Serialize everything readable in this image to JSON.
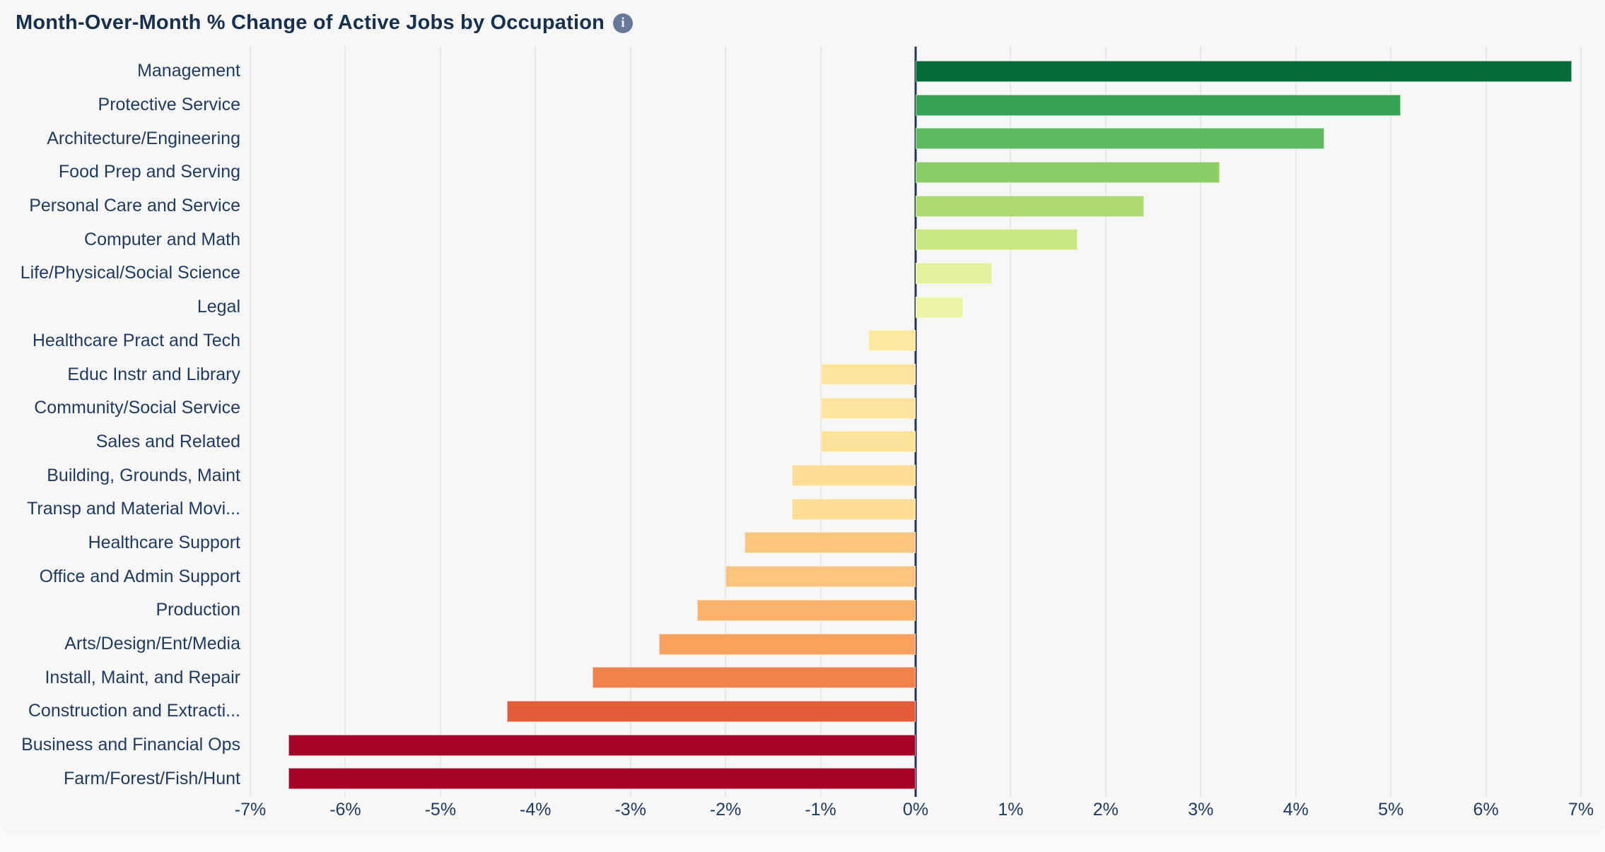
{
  "header": {
    "title": "Month-Over-Month % Change of Active Jobs by Occupation",
    "info_glyph": "i"
  },
  "colors": {
    "page_background": "#fbfbfc",
    "card_background": "#f7f7f8",
    "title_text": "#16304e",
    "axis_text": "#1e3a5f",
    "gridline": "#e8e8ea",
    "zero_line": "#1d3557",
    "info_icon_background": "#66799b"
  },
  "chart_data": {
    "type": "bar",
    "orientation": "horizontal",
    "title": "Month-Over-Month % Change of Active Jobs by Occupation",
    "xlabel": "",
    "ylabel": "",
    "x_unit": "%",
    "xlim": [
      -7,
      7
    ],
    "x_ticks": [
      "-7%",
      "-6%",
      "-5%",
      "-4%",
      "-3%",
      "-2%",
      "-1%",
      "0%",
      "1%",
      "2%",
      "3%",
      "4%",
      "5%",
      "6%",
      "7%"
    ],
    "grid": true,
    "zero_line": true,
    "legend": "none",
    "categories": [
      "Management",
      "Protective Service",
      "Architecture/Engineering",
      "Food Prep and Serving",
      "Personal Care and Service",
      "Computer and Math",
      "Life/Physical/Social Science",
      "Legal",
      "Healthcare Pract and Tech",
      "Educ Instr and Library",
      "Community/Social Service",
      "Sales and Related",
      "Building, Grounds, Maint",
      "Transp and Material Movi...",
      "Healthcare Support",
      "Office and Admin Support",
      "Production",
      "Arts/Design/Ent/Media",
      "Install, Maint, and Repair",
      "Construction and Extracti...",
      "Business and Financial Ops",
      "Farm/Forest/Fish/Hunt"
    ],
    "values": [
      6.9,
      5.1,
      4.3,
      3.2,
      2.4,
      1.7,
      0.8,
      0.5,
      -0.5,
      -1.0,
      -1.0,
      -1.0,
      -1.3,
      -1.3,
      -1.8,
      -2.0,
      -2.3,
      -2.7,
      -3.4,
      -4.3,
      -6.6,
      -6.6
    ],
    "bar_colors": [
      "#046a38",
      "#35a254",
      "#5dba61",
      "#8bcd67",
      "#aedb71",
      "#c8e683",
      "#e2f19b",
      "#edf4a8",
      "#fae99f",
      "#fde39c",
      "#fde39c",
      "#fde29a",
      "#fedd95",
      "#fedd94",
      "#fdc57f",
      "#fdc47d",
      "#fcb26b",
      "#faa15e",
      "#f2824b",
      "#e55c38",
      "#a50427",
      "#a50427"
    ]
  }
}
